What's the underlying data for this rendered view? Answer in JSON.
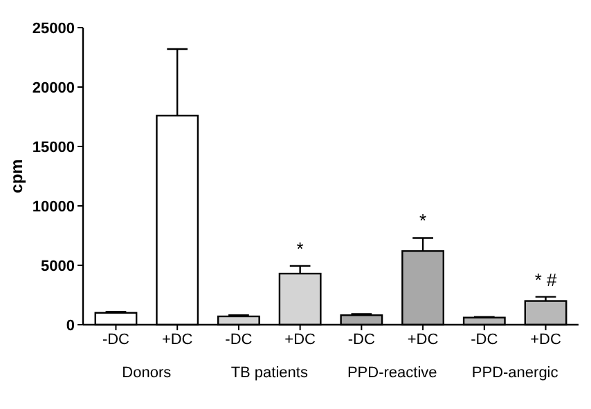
{
  "chart_data": {
    "type": "bar",
    "ylabel": "cpm",
    "categories": [
      "-DC",
      "+DC",
      "-DC",
      "+DC",
      "-DC",
      "+DC",
      "-DC",
      "+DC"
    ],
    "values": [
      1000,
      17600,
      700,
      4300,
      800,
      6200,
      600,
      2000
    ],
    "errors": [
      [
        1000,
        1100
      ],
      [
        17600,
        23200
      ],
      [
        700,
        800
      ],
      [
        4300,
        4950
      ],
      [
        800,
        900
      ],
      [
        6200,
        7300
      ],
      [
        600,
        650
      ],
      [
        2000,
        2350
      ]
    ],
    "colors": [
      "#ffffff",
      "#ffffff",
      "#d4d4d4",
      "#d4d4d4",
      "#a8a8a8",
      "#a8a8a8",
      "#b8b8b8",
      "#b8b8b8"
    ],
    "value_labels": [
      null,
      null,
      null,
      "*",
      null,
      "*",
      null,
      "* #"
    ],
    "annotations": [
      "Donors",
      "TB patients",
      "PPD-reactive",
      "PPD-anergic"
    ],
    "ylim": [
      0,
      25000
    ],
    "yticks": [
      0,
      5000,
      10000,
      15000,
      20000,
      25000
    ],
    "grid": false
  }
}
